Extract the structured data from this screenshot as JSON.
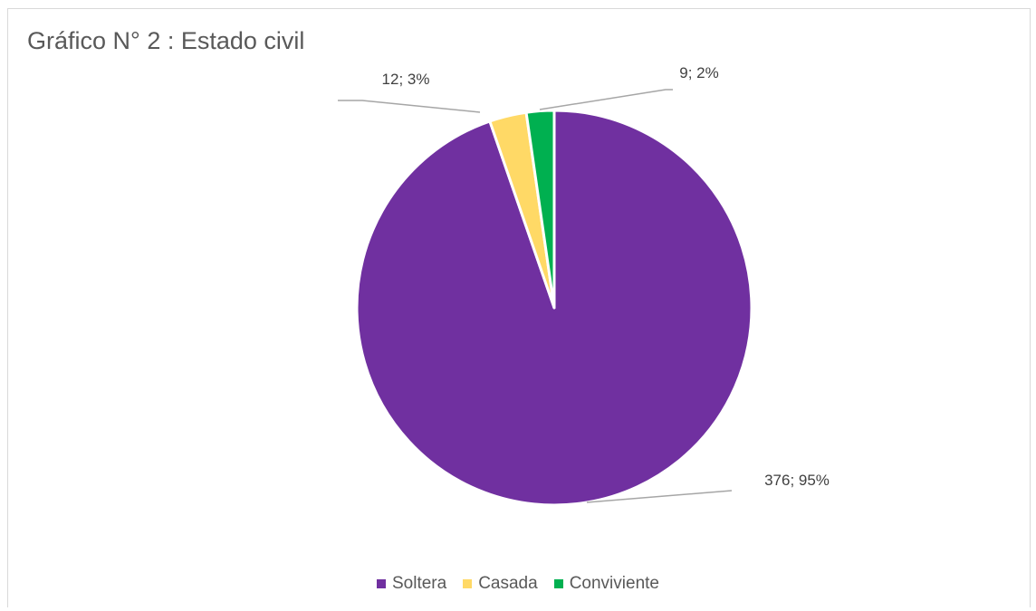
{
  "chart_data": {
    "type": "pie",
    "title": "Gráfico N° 2 : Estado civil",
    "categories": [
      "Soltera",
      "Casada",
      "Conviviente"
    ],
    "values": [
      376,
      12,
      9
    ],
    "percent_labels": [
      "95%",
      "3%",
      "2%"
    ],
    "data_labels": [
      "376; 95%",
      "12; 3%",
      "9; 2%"
    ],
    "colors": [
      "#7030A0",
      "#FFD966",
      "#00B050"
    ],
    "legend_position": "bottom",
    "start_angle": "12 o'clock",
    "direction": "clockwise"
  }
}
